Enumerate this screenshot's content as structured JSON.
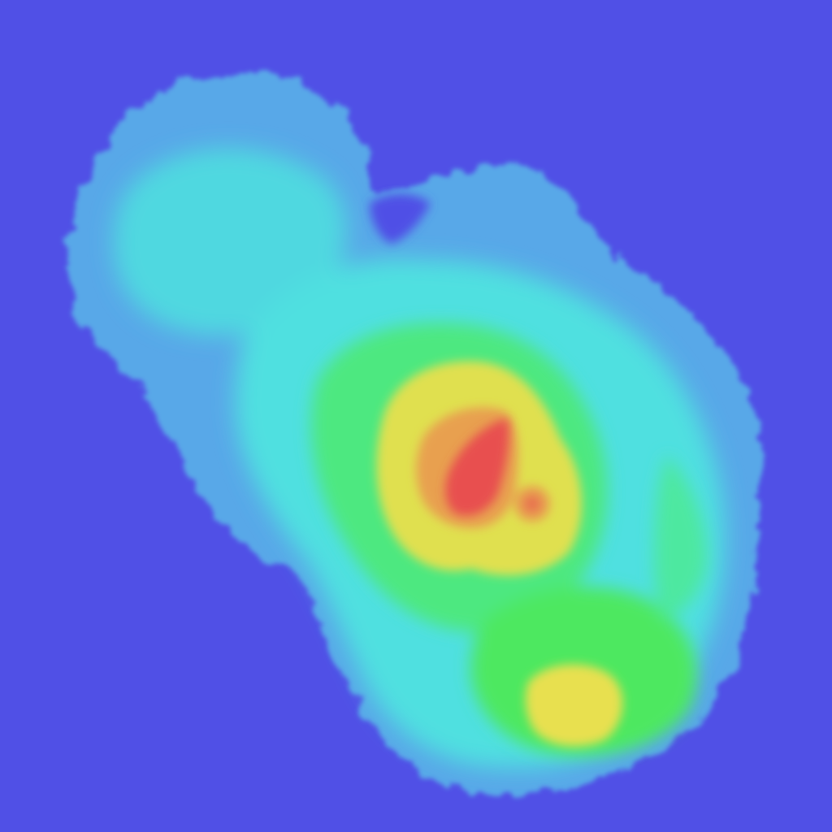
{
  "map": {
    "type": "elevation-heightmap",
    "colors": {
      "background": "#5050e6",
      "low": "#5a9fe8",
      "mid_low": "#4fe0e0",
      "mid": "#4ee84e",
      "mid_high": "#e8e050",
      "high": "#e85050"
    },
    "gradient_order": [
      "low",
      "mid_low",
      "mid",
      "mid_high",
      "high"
    ]
  }
}
